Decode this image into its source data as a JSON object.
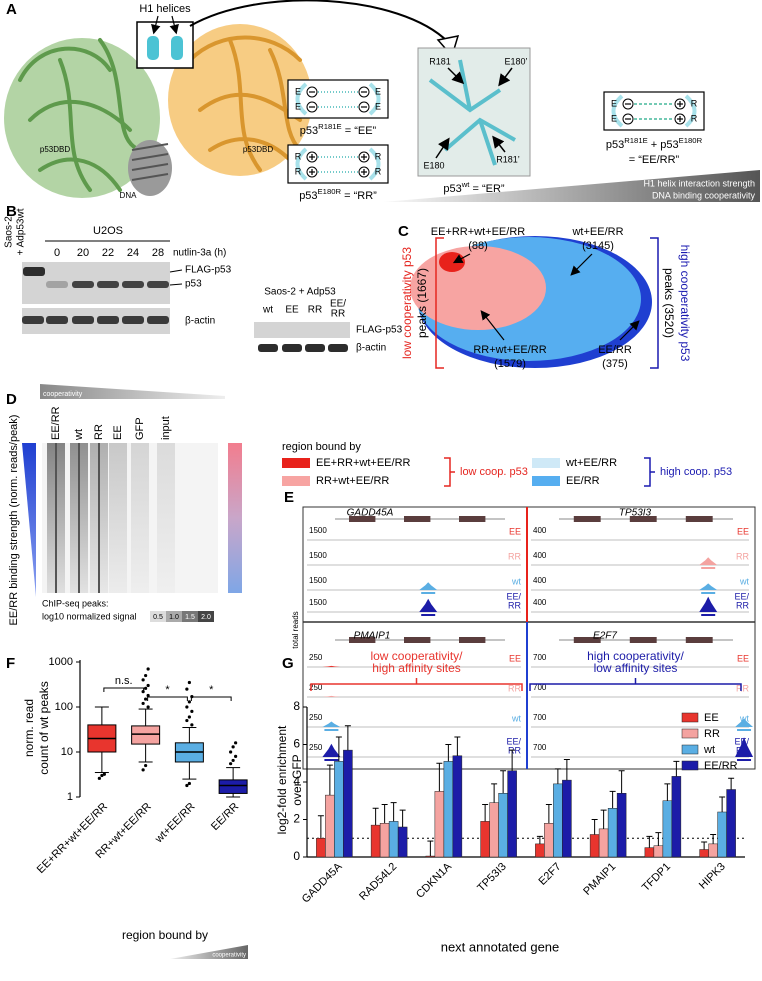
{
  "panels": {
    "a": {
      "label": "A",
      "helices": "H1 helices",
      "protein_left": "p53DBD",
      "protein_right": "p53DBD",
      "dna": "DNA",
      "charge": {
        "e": "E",
        "r": "R"
      },
      "ee_caption": {
        "name": "p53",
        "mutation": "R181E",
        "alias": " = “EE”"
      },
      "rr_caption": {
        "name": "p53",
        "mutation": "E180R",
        "alias": " = “RR”"
      },
      "wt_caption": {
        "name": "p53",
        "variant": "wt",
        "alias": " = “ER”"
      },
      "residues": [
        "R181",
        "E180’",
        "E180",
        "R181’"
      ],
      "eerr_caption": {
        "name": "p53",
        "mutation": "R181E",
        "plus": " + p53",
        "mutation2": "E180R",
        "alias": "= “EE/RR”"
      },
      "gradient": [
        "H1 helix interaction strength",
        "DNA binding cooperativity"
      ]
    },
    "b": {
      "label": "B",
      "control": [
        "Saos-2",
        "+ Adp53wt"
      ],
      "cell_line": "U2OS",
      "timepoints": [
        "0",
        "20",
        "22",
        "24",
        "28"
      ],
      "treatment": "nutlin-3a (h)",
      "bands": [
        "FLAG-p53",
        "p53",
        "β-actin"
      ],
      "right_title": "Saos-2 + Adp53",
      "right_lanes": [
        [
          "wt"
        ],
        [
          "EE"
        ],
        [
          "RR"
        ],
        [
          "EE/",
          "RR"
        ]
      ],
      "right_bands": [
        "FLAG-p53",
        "β-actin"
      ]
    },
    "c": {
      "label": "C",
      "low": {
        "title": "low cooperativity p53",
        "peaks": "peaks (1667)"
      },
      "high": {
        "title": "high cooperativity p53",
        "peaks": "peaks (3520)"
      },
      "sets": [
        {
          "label": "EE+RR+wt+EE/RR",
          "count": "(88)"
        },
        {
          "label": "wt+EE/RR",
          "count": "(3145)"
        },
        {
          "label": "RR+wt+EE/RR",
          "count": "(1579)"
        },
        {
          "label": "EE/RR",
          "count": "(375)"
        }
      ]
    },
    "d": {
      "label": "D",
      "gradient": "cooperativity",
      "columns": [
        "EE/RR",
        "wt",
        "RR",
        "EE",
        "GFP",
        "input"
      ],
      "y_label": "EE/RR binding strength (norm. reads/peak)",
      "scale_title": [
        "ChIP-seq peaks:",
        "log10 normalized signal"
      ],
      "scale": [
        "0.5",
        "1.0",
        "1.5",
        "2.0"
      ],
      "legend": {
        "title": "region bound by",
        "low": [
          "EE+RR+wt+EE/RR",
          "RR+wt+EE/RR"
        ],
        "low_group": "low coop. p53",
        "high": [
          "wt+EE/RR",
          "EE/RR"
        ],
        "high_group": "high coop. p53"
      }
    },
    "e": {
      "label": "E",
      "y_label": "total reads",
      "tracks": [
        [
          "EE"
        ],
        [
          "RR"
        ],
        [
          "wt"
        ],
        [
          "EE/",
          "RR"
        ]
      ],
      "loci": [
        {
          "gene": "GADD45A",
          "scale": "1500"
        },
        {
          "gene": "TP53I3",
          "scale": "400"
        },
        {
          "gene": "PMAIP1",
          "scale": "250"
        },
        {
          "gene": "E2F7",
          "scale": "700"
        }
      ]
    },
    "f": {
      "label": "F"
    },
    "g": {
      "label": "G"
    }
  },
  "chart_data": [
    {
      "type": "box",
      "y_label": [
        "norm. read",
        "count of wt peaks"
      ],
      "x_label": "region bound by",
      "gradient": "cooperativity",
      "categories": [
        "EE+RR+wt+EE/RR",
        "RR+wt+EE/RR",
        "wt+EE/RR",
        "EE/RR"
      ],
      "colors": [
        "#e8352e",
        "#f4a3a0",
        "#5aaee3",
        "#1c1ca8"
      ],
      "boxes": [
        {
          "whislo": 3.5,
          "q1": 10,
          "med": 20,
          "q3": 40,
          "whishi": 100,
          "fliers": [
            2.6,
            3.0,
            3.2
          ]
        },
        {
          "whislo": 6,
          "q1": 15,
          "med": 25,
          "q3": 38,
          "whishi": 90,
          "fliers": [
            4,
            5,
            100,
            120,
            150,
            180,
            220,
            260,
            300,
            400,
            500,
            700
          ]
        },
        {
          "whislo": 2.5,
          "q1": 6,
          "med": 10,
          "q3": 16,
          "whishi": 35,
          "fliers": [
            1.8,
            2,
            40,
            50,
            60,
            80,
            100,
            130,
            170,
            250,
            350
          ]
        },
        {
          "whislo": 1,
          "q1": 1.2,
          "med": 1.8,
          "q3": 2.4,
          "whishi": 4.5,
          "fliers": [
            5.5,
            6.5,
            8,
            10,
            13,
            16
          ]
        }
      ],
      "ylim": [
        1,
        1000
      ],
      "yticks": [
        1,
        10,
        100,
        1000
      ],
      "log_scale": true,
      "significance": [
        "n.s.",
        "*",
        "*"
      ]
    },
    {
      "type": "bar",
      "y_label": [
        "log2-fold enrichment",
        "over GFP"
      ],
      "x_label": "next annotated gene",
      "categories": [
        "GADD45A",
        "RAD54L2",
        "CDKN1A",
        "TP53I3",
        "E2F7",
        "PMAIP1",
        "TFDP1",
        "HIPK3"
      ],
      "series": [
        {
          "name": "EE",
          "color": "#e8352e",
          "values": [
            1.0,
            1.7,
            0.05,
            1.9,
            0.7,
            1.2,
            0.5,
            0.4
          ],
          "errors": [
            1.2,
            0.9,
            0.8,
            0.9,
            0.4,
            0.8,
            0.6,
            0.4
          ]
        },
        {
          "name": "RR",
          "color": "#f4a3a0",
          "values": [
            3.3,
            1.8,
            3.5,
            2.9,
            1.8,
            1.5,
            0.6,
            0.7
          ],
          "errors": [
            1.6,
            1.0,
            1.5,
            1.0,
            1.0,
            1.0,
            0.7,
            0.5
          ]
        },
        {
          "name": "wt",
          "color": "#5aaee3",
          "values": [
            5.1,
            1.9,
            5.1,
            3.4,
            3.9,
            2.6,
            3.0,
            2.4
          ],
          "errors": [
            1.3,
            1.0,
            0.9,
            1.2,
            0.8,
            0.9,
            0.9,
            0.8
          ]
        },
        {
          "name": "EE/RR",
          "color": "#1c1ca8",
          "values": [
            5.7,
            1.6,
            5.4,
            4.6,
            4.1,
            3.4,
            4.3,
            3.6
          ],
          "errors": [
            1.3,
            0.9,
            1.0,
            1.1,
            1.1,
            1.2,
            0.8,
            0.6
          ]
        }
      ],
      "ylim": [
        0,
        8
      ],
      "yticks": [
        0,
        2,
        4,
        6,
        8
      ],
      "reference_line": 1,
      "groups": [
        {
          "label": [
            "low cooperativity/",
            "high affinity sites"
          ],
          "color": "#e8352e"
        },
        {
          "label": [
            "high cooperativity/",
            "low affinity sites"
          ],
          "color": "#1c1ca8"
        }
      ]
    }
  ]
}
